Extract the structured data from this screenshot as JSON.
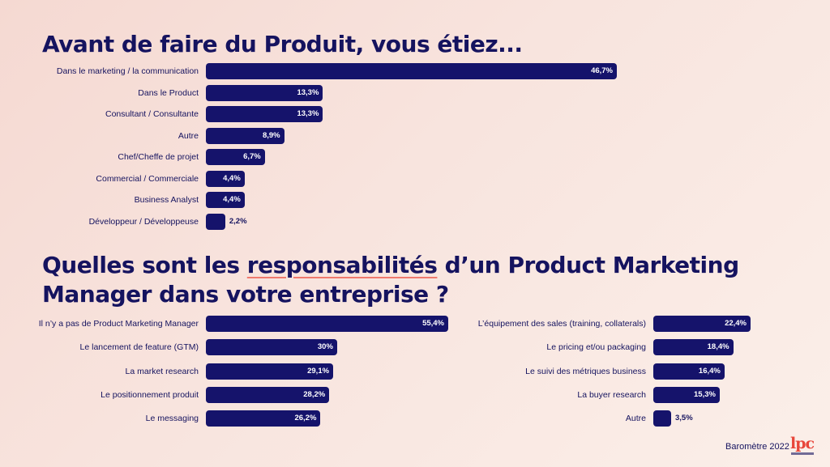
{
  "titles": {
    "q1": "Avant de faire du Produit, vous étiez...",
    "q2_part1": "Quelles sont les ",
    "q2_underlined": "responsabilités",
    "q2_part2": " d’un Product Marketing Manager dans votre entreprise ?"
  },
  "footer": {
    "text": "Baromètre 2022",
    "logo_text": "lpc",
    "logo_icon": "lpc-logo"
  },
  "colors": {
    "bar": "#15136b",
    "text": "#15135f",
    "accent": "#f07a6e",
    "logo": "#e8463a"
  },
  "chart_data": [
    {
      "type": "bar",
      "orientation": "horizontal",
      "title": "Avant de faire du Produit, vous étiez...",
      "categories": [
        "Dans le marketing / la communication",
        "Dans le Product",
        "Consultant / Consultante",
        "Autre",
        "Chef/Cheffe de projet",
        "Commercial / Commerciale",
        "Business Analyst",
        "Développeur / Développeuse"
      ],
      "values": [
        46.7,
        13.3,
        13.3,
        8.9,
        6.7,
        4.4,
        4.4,
        2.2
      ],
      "labels": [
        "46,7%",
        "13,3%",
        "13,3%",
        "8,9%",
        "6,7%",
        "4,4%",
        "4,4%",
        "2,2%"
      ],
      "unit": "%"
    },
    {
      "type": "bar",
      "orientation": "horizontal",
      "title": "Quelles sont les responsabilités d’un Product Marketing Manager dans votre entreprise ?",
      "categories": [
        "Il n’y a pas de Product Marketing Manager",
        "Le lancement de feature (GTM)",
        "La market research",
        "Le positionnement produit",
        "Le messaging"
      ],
      "values": [
        55.4,
        30,
        29.1,
        28.2,
        26.2
      ],
      "labels": [
        "55,4%",
        "30%",
        "29,1%",
        "28,2%",
        "26,2%"
      ],
      "unit": "%"
    },
    {
      "type": "bar",
      "orientation": "horizontal",
      "title": "Quelles sont les responsabilités d’un Product Marketing Manager dans votre entreprise ?",
      "categories": [
        "L’équipement des sales (training, collaterals)",
        "Le pricing et/ou packaging",
        "Le suivi des métriques business",
        "La buyer research",
        "Autre"
      ],
      "values": [
        22.4,
        18.4,
        16.4,
        15.3,
        3.5
      ],
      "labels": [
        "22,4%",
        "18,4%",
        "16,4%",
        "15,3%",
        "3,5%"
      ],
      "unit": "%"
    }
  ]
}
